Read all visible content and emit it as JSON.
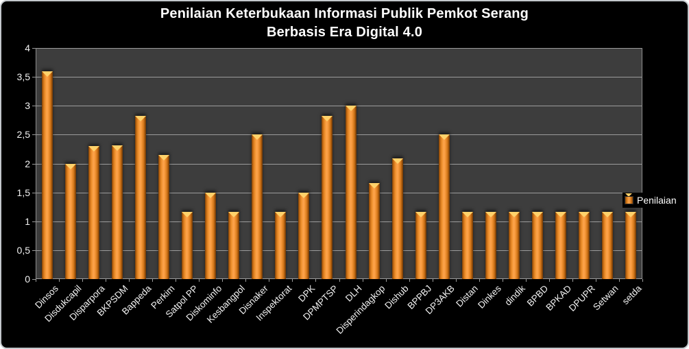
{
  "chart_data": {
    "type": "bar",
    "title_line1": "Penilaian Keterbukaan Informasi Publik Pemkot Serang",
    "title_line2": "Berbasis Era Digital 4.0",
    "series_name": "Penilaian",
    "categories": [
      "Dinsos",
      "Disdukcapil",
      "Disparpora",
      "BKPSDM",
      "Bappeda",
      "Perkim",
      "Satpol PP",
      "Diskominfo",
      "Kesbangpol",
      "Disnaker",
      "Inspektorat",
      "DPK",
      "DPMPTSP",
      "DLH",
      "Disperindagkop",
      "Dishub",
      "BPPBJ",
      "DP3AKB",
      "Distan",
      "Dinkes",
      "dindik",
      "BPBD",
      "BPKAD",
      "DPUPR",
      "Setwan",
      "setda"
    ],
    "values": [
      3.6,
      2.0,
      2.3,
      2.32,
      2.83,
      2.15,
      1.16,
      1.49,
      1.16,
      2.5,
      1.16,
      1.49,
      2.83,
      3.0,
      1.66,
      2.09,
      1.16,
      2.5,
      1.16,
      1.16,
      1.16,
      1.16,
      1.16,
      1.16,
      1.16,
      1.16
    ],
    "ylim": [
      0,
      4
    ],
    "ytick_step": 0.5,
    "ytick_labels": [
      "0",
      "0,5",
      "1",
      "1,5",
      "2",
      "2,5",
      "3",
      "3,5",
      "4"
    ],
    "grid": true,
    "legend_position": "right",
    "colors": {
      "bar_center": "#fca44d",
      "bar_edge": "#7a3f07",
      "bar_cap_highlight": "#ffd26b",
      "plot_background": "#3d3d3d",
      "chart_background": "#000000",
      "gridline": "#9c9c9c",
      "text": "#ffffff"
    }
  }
}
